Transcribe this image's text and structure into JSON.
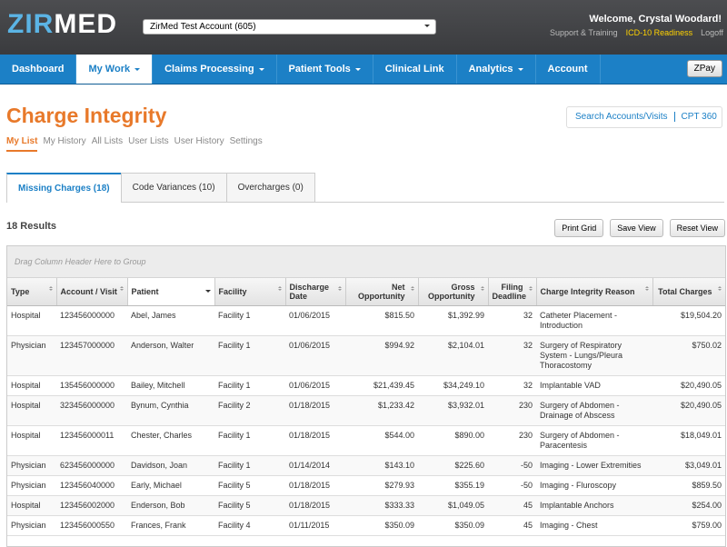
{
  "header": {
    "logo": {
      "first": "ZIR",
      "second": "MED"
    },
    "account_select": "ZirMed Test Account (605)",
    "welcome": "Welcome, Crystal Woodard!",
    "links": [
      "Support & Training",
      "ICD-10 Readiness",
      "Logoff"
    ]
  },
  "nav": {
    "items": [
      "Dashboard",
      "My Work",
      "Claims Processing",
      "Patient Tools",
      "Clinical Link",
      "Analytics",
      "Account"
    ],
    "button": "ZPay"
  },
  "page": {
    "title": "Charge Integrity",
    "quick_links": [
      "Search Accounts/Visits",
      "CPT 360"
    ],
    "subtabs": [
      "My List",
      "My History",
      "All Lists",
      "User Lists",
      "User History",
      "Settings"
    ],
    "tabs": [
      "Missing Charges (18)",
      "Code Variances (10)",
      "Overcharges (0)"
    ],
    "results": "18 Results",
    "buttons": [
      "Print Grid",
      "Save View",
      "Reset View"
    ]
  },
  "table": {
    "group_hint": "Drag Column Header Here to Group",
    "columns": [
      "Type",
      "Account / Visit",
      "Patient",
      "Facility",
      "Discharge Date",
      "Net Opportunity",
      "Gross Opportunity",
      "Filing Deadline",
      "Charge Integrity Reason",
      "Total Charges"
    ],
    "rows": [
      [
        "Hospital",
        "123456000000",
        "Abel, James",
        "Facility 1",
        "01/06/2015",
        "$815.50",
        "$1,392.99",
        "32",
        "Catheter Placement - Introduction",
        "$19,504.20"
      ],
      [
        "Physician",
        "123457000000",
        "Anderson, Walter",
        "Facility 1",
        "01/06/2015",
        "$994.92",
        "$2,104.01",
        "32",
        "Surgery of Respiratory System - Lungs/Pleura Thoracostomy",
        "$750.02"
      ],
      [
        "Hospital",
        "135456000000",
        "Bailey, Mitchell",
        "Facility 1",
        "01/06/2015",
        "$21,439.45",
        "$34,249.10",
        "32",
        "Implantable VAD",
        "$20,490.05"
      ],
      [
        "Hospital",
        "323456000000",
        "Bynum, Cynthia",
        "Facility 2",
        "01/18/2015",
        "$1,233.42",
        "$3,932.01",
        "230",
        "Surgery of Abdomen - Drainage of Abscess",
        "$20,490.05"
      ],
      [
        "Hospital",
        "123456000011",
        "Chester, Charles",
        "Facility 1",
        "01/18/2015",
        "$544.00",
        "$890.00",
        "230",
        "Surgery of Abdomen - Paracentesis",
        "$18,049.01"
      ],
      [
        "Physician",
        "623456000000",
        "Davidson, Joan",
        "Facility 1",
        "01/14/2014",
        "$143.10",
        "$225.60",
        "-50",
        "Imaging - Lower Extremities",
        "$3,049.01"
      ],
      [
        "Physician",
        "123456040000",
        "Early, Michael",
        "Facility 5",
        "01/18/2015",
        "$279.93",
        "$355.19",
        "-50",
        "Imaging - Fluroscopy",
        "$859.50"
      ],
      [
        "Hospital",
        "123456002000",
        "Enderson, Bob",
        "Facility 5",
        "01/18/2015",
        "$333.33",
        "$1,049.05",
        "45",
        "Implantable Anchors",
        "$254.00"
      ],
      [
        "Physician",
        "123456000550",
        "Frances, Frank",
        "Facility 4",
        "01/11/2015",
        "$350.09",
        "$350.09",
        "45",
        "Imaging - Chest",
        "$759.00"
      ]
    ]
  }
}
